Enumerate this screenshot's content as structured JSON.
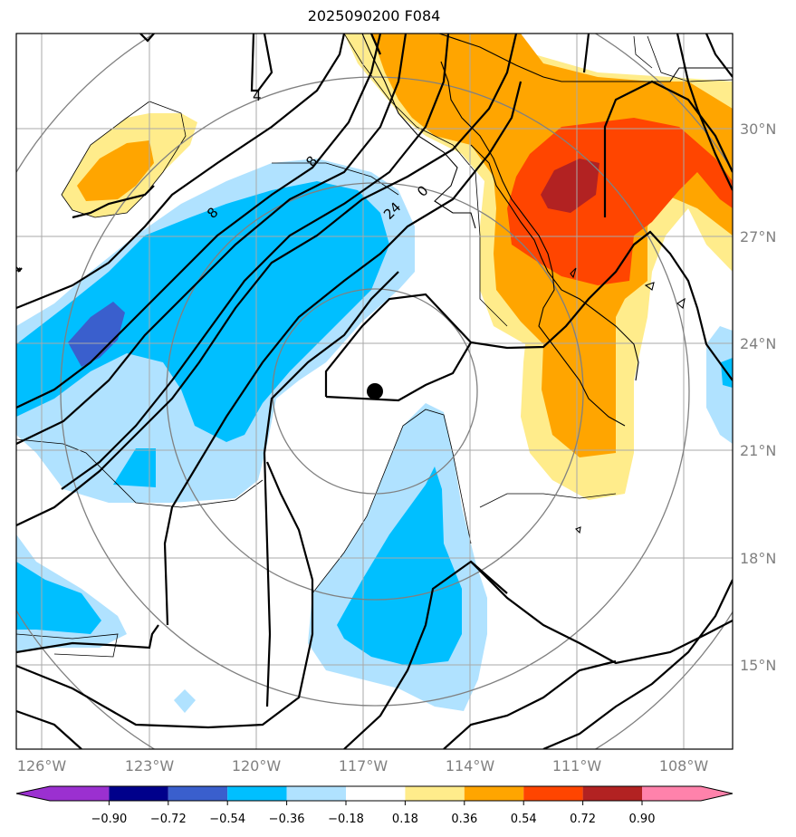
{
  "title": "2025090200 F084",
  "map": {
    "lon_ticks": [
      "126°W",
      "123°W",
      "120°W",
      "117°W",
      "114°W",
      "111°W",
      "108°W"
    ],
    "lat_ticks": [
      "30°N",
      "27°N",
      "24°N",
      "21°N",
      "18°N",
      "15°N"
    ],
    "contour_labels": [
      "4",
      "8",
      "8",
      "24",
      "0",
      "4"
    ],
    "center_marker": "storm-center-dot"
  },
  "colorbar": {
    "ticks": [
      "−0.90",
      "−0.72",
      "−0.54",
      "−0.36",
      "−0.18",
      "0.18",
      "0.36",
      "0.54",
      "0.72",
      "0.90"
    ],
    "colors": [
      "#9b30d0",
      "#00008b",
      "#3a5fcd",
      "#00bfff",
      "#b0e2ff",
      "#ffffff",
      "#ffec8b",
      "#ffa500",
      "#ff4500",
      "#b22222",
      "#ff82ab"
    ]
  },
  "colors": {
    "neg_light": "#b0e2ff",
    "neg_mid": "#00bfff",
    "neg_strong": "#3a5fcd",
    "pos_light": "#ffec8b",
    "pos_mid": "#ffa500",
    "pos_strong": "#ff4500",
    "pos_max": "#b22222"
  }
}
